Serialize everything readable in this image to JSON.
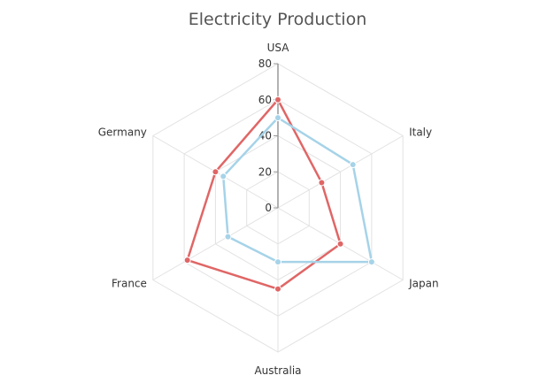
{
  "chart_data": {
    "type": "radar",
    "title": "Electricity Production",
    "categories": [
      "USA",
      "Italy",
      "Japan",
      "Australia",
      "France",
      "Germany"
    ],
    "rlim": [
      0,
      80
    ],
    "ticks": [
      0,
      20,
      40,
      60,
      80
    ],
    "grid": true,
    "legend": "none",
    "series": [
      {
        "color": "#e06666",
        "values": [
          60,
          28,
          40,
          45,
          58,
          40
        ]
      },
      {
        "color": "#a6d3e8",
        "values": [
          50,
          48,
          60,
          30,
          32,
          35
        ]
      }
    ]
  }
}
